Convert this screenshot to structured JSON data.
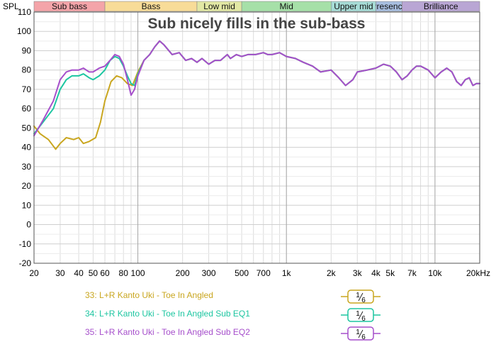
{
  "chart_data": {
    "type": "line",
    "title": "Sub nicely fills in the sub-bass",
    "ylabel": "SPL",
    "xscale": "log",
    "xlim": [
      20,
      20000
    ],
    "ylim": [
      -20,
      110
    ],
    "grid": true,
    "ytick_labels": [
      "110",
      "100",
      "90",
      "80",
      "70",
      "60",
      "50",
      "40",
      "30",
      "20",
      "10",
      "0",
      "-10",
      "-20"
    ],
    "xticks": [
      {
        "value": 20,
        "label": "20"
      },
      {
        "value": 30,
        "label": "30"
      },
      {
        "value": 40,
        "label": "40"
      },
      {
        "value": 50,
        "label": "50"
      },
      {
        "value": 60,
        "label": "60"
      },
      {
        "value": 80,
        "label": "80"
      },
      {
        "value": 100,
        "label": "100"
      },
      {
        "value": 200,
        "label": "200"
      },
      {
        "value": 300,
        "label": "300"
      },
      {
        "value": 500,
        "label": "500"
      },
      {
        "value": 700,
        "label": "700"
      },
      {
        "value": 1000,
        "label": "1k"
      },
      {
        "value": 2000,
        "label": "2k"
      },
      {
        "value": 3000,
        "label": "3k"
      },
      {
        "value": 4000,
        "label": "4k"
      },
      {
        "value": 5000,
        "label": "5k"
      },
      {
        "value": 7000,
        "label": "7k"
      },
      {
        "value": 10000,
        "label": "10k"
      },
      {
        "value": 20000,
        "label": "20kHz"
      }
    ],
    "bands": [
      {
        "label": "Sub bass",
        "from": 20,
        "to": 60,
        "color": "#f4a4a9"
      },
      {
        "label": "Bass",
        "from": 60,
        "to": 250,
        "color": "#f8dc98"
      },
      {
        "label": "Low mid",
        "from": 250,
        "to": 500,
        "color": "#e2e8a4"
      },
      {
        "label": "Mid",
        "from": 500,
        "to": 2000,
        "color": "#a6e0a8"
      },
      {
        "label": "Upper mid",
        "from": 2000,
        "to": 4000,
        "color": "#a6dcd6"
      },
      {
        "label": "Presence",
        "from": 4000,
        "to": 6000,
        "color": "#a8bfe0"
      },
      {
        "label": "Brilliance",
        "from": 6000,
        "to": 20000,
        "color": "#b9a6d4"
      }
    ],
    "series": [
      {
        "name": "33: L+R Kanto Uki - Toe In Angled",
        "color": "#c9a61f",
        "points": [
          [
            20,
            51
          ],
          [
            22,
            47
          ],
          [
            25,
            44
          ],
          [
            28,
            39
          ],
          [
            30,
            42
          ],
          [
            33,
            45
          ],
          [
            37,
            44
          ],
          [
            40,
            45
          ],
          [
            43,
            42
          ],
          [
            47,
            43
          ],
          [
            52,
            45
          ],
          [
            56,
            53
          ],
          [
            60,
            64
          ],
          [
            66,
            74
          ],
          [
            72,
            77
          ],
          [
            78,
            76
          ],
          [
            85,
            73
          ],
          [
            92,
            72
          ],
          [
            100,
            79
          ],
          [
            110,
            85
          ],
          [
            120,
            88
          ],
          [
            130,
            92
          ],
          [
            140,
            95
          ],
          [
            150,
            93
          ],
          [
            170,
            88
          ],
          [
            190,
            89
          ],
          [
            210,
            85
          ],
          [
            230,
            86
          ],
          [
            250,
            84
          ],
          [
            270,
            86
          ],
          [
            300,
            83
          ],
          [
            330,
            85
          ],
          [
            360,
            85
          ],
          [
            400,
            88
          ],
          [
            420,
            86
          ],
          [
            460,
            88
          ],
          [
            500,
            87
          ],
          [
            550,
            88
          ],
          [
            620,
            88
          ],
          [
            700,
            89
          ],
          [
            750,
            88
          ],
          [
            800,
            88
          ],
          [
            900,
            89
          ],
          [
            1000,
            87
          ],
          [
            1150,
            86
          ],
          [
            1300,
            84
          ],
          [
            1500,
            82
          ],
          [
            1700,
            79
          ],
          [
            2000,
            80
          ],
          [
            2250,
            76
          ],
          [
            2500,
            72
          ],
          [
            2800,
            75
          ],
          [
            3000,
            79
          ],
          [
            3500,
            80
          ],
          [
            4000,
            81
          ],
          [
            4500,
            83
          ],
          [
            5000,
            82
          ],
          [
            5500,
            79
          ],
          [
            6000,
            75
          ],
          [
            6500,
            77
          ],
          [
            7000,
            80
          ],
          [
            7500,
            82
          ],
          [
            8000,
            82
          ],
          [
            9000,
            80
          ],
          [
            10000,
            76
          ],
          [
            11000,
            79
          ],
          [
            12000,
            81
          ],
          [
            13000,
            79
          ],
          [
            14000,
            74
          ],
          [
            15000,
            72
          ],
          [
            16000,
            75
          ],
          [
            17000,
            76
          ],
          [
            18000,
            72
          ],
          [
            19000,
            73
          ],
          [
            20000,
            73
          ]
        ]
      },
      {
        "name": "34: L+R Kanto Uki - Toe In Angled Sub EQ1",
        "color": "#1dc6a1",
        "points": [
          [
            20,
            47
          ],
          [
            23,
            53
          ],
          [
            27,
            60
          ],
          [
            30,
            70
          ],
          [
            33,
            75
          ],
          [
            36,
            77
          ],
          [
            40,
            77
          ],
          [
            43,
            78
          ],
          [
            47,
            76
          ],
          [
            50,
            75
          ],
          [
            55,
            77
          ],
          [
            60,
            80
          ],
          [
            65,
            85
          ],
          [
            70,
            87
          ],
          [
            75,
            86
          ],
          [
            80,
            82
          ],
          [
            85,
            77
          ],
          [
            90,
            73
          ],
          [
            95,
            72
          ],
          [
            100,
            78
          ],
          [
            110,
            85
          ],
          [
            120,
            88
          ],
          [
            130,
            92
          ],
          [
            140,
            95
          ],
          [
            150,
            93
          ],
          [
            170,
            88
          ],
          [
            190,
            89
          ],
          [
            210,
            85
          ],
          [
            230,
            86
          ],
          [
            250,
            84
          ],
          [
            270,
            86
          ],
          [
            300,
            83
          ],
          [
            330,
            85
          ],
          [
            360,
            85
          ],
          [
            400,
            88
          ],
          [
            420,
            86
          ],
          [
            460,
            88
          ],
          [
            500,
            87
          ],
          [
            550,
            88
          ],
          [
            620,
            88
          ],
          [
            700,
            89
          ],
          [
            750,
            88
          ],
          [
            800,
            88
          ],
          [
            900,
            89
          ],
          [
            1000,
            87
          ],
          [
            1150,
            86
          ],
          [
            1300,
            84
          ],
          [
            1500,
            82
          ],
          [
            1700,
            79
          ],
          [
            2000,
            80
          ],
          [
            2250,
            76
          ],
          [
            2500,
            72
          ],
          [
            2800,
            75
          ],
          [
            3000,
            79
          ],
          [
            3500,
            80
          ],
          [
            4000,
            81
          ],
          [
            4500,
            83
          ],
          [
            5000,
            82
          ],
          [
            5500,
            79
          ],
          [
            6000,
            75
          ],
          [
            6500,
            77
          ],
          [
            7000,
            80
          ],
          [
            7500,
            82
          ],
          [
            8000,
            82
          ],
          [
            9000,
            80
          ],
          [
            10000,
            76
          ],
          [
            11000,
            79
          ],
          [
            12000,
            81
          ],
          [
            13000,
            79
          ],
          [
            14000,
            74
          ],
          [
            15000,
            72
          ],
          [
            16000,
            75
          ],
          [
            17000,
            76
          ],
          [
            18000,
            72
          ],
          [
            19000,
            73
          ],
          [
            20000,
            73
          ]
        ]
      },
      {
        "name": "35: L+R Kanto Uki - Toe In Angled Sub EQ2",
        "color": "#a64fcb",
        "points": [
          [
            20,
            46
          ],
          [
            23,
            54
          ],
          [
            27,
            64
          ],
          [
            30,
            75
          ],
          [
            33,
            79
          ],
          [
            36,
            80
          ],
          [
            40,
            80
          ],
          [
            43,
            81
          ],
          [
            47,
            79
          ],
          [
            50,
            79
          ],
          [
            55,
            81
          ],
          [
            60,
            82
          ],
          [
            65,
            85
          ],
          [
            70,
            88
          ],
          [
            75,
            87
          ],
          [
            80,
            83
          ],
          [
            85,
            75
          ],
          [
            90,
            67
          ],
          [
            95,
            70
          ],
          [
            100,
            77
          ],
          [
            110,
            85
          ],
          [
            120,
            88
          ],
          [
            130,
            92
          ],
          [
            140,
            95
          ],
          [
            150,
            93
          ],
          [
            170,
            88
          ],
          [
            190,
            89
          ],
          [
            210,
            85
          ],
          [
            230,
            86
          ],
          [
            250,
            84
          ],
          [
            270,
            86
          ],
          [
            300,
            83
          ],
          [
            330,
            85
          ],
          [
            360,
            85
          ],
          [
            400,
            88
          ],
          [
            420,
            86
          ],
          [
            460,
            88
          ],
          [
            500,
            87
          ],
          [
            550,
            88
          ],
          [
            620,
            88
          ],
          [
            700,
            89
          ],
          [
            750,
            88
          ],
          [
            800,
            88
          ],
          [
            900,
            89
          ],
          [
            1000,
            87
          ],
          [
            1150,
            86
          ],
          [
            1300,
            84
          ],
          [
            1500,
            82
          ],
          [
            1700,
            79
          ],
          [
            2000,
            80
          ],
          [
            2250,
            76
          ],
          [
            2500,
            72
          ],
          [
            2800,
            75
          ],
          [
            3000,
            79
          ],
          [
            3500,
            80
          ],
          [
            4000,
            81
          ],
          [
            4500,
            83
          ],
          [
            5000,
            82
          ],
          [
            5500,
            79
          ],
          [
            6000,
            75
          ],
          [
            6500,
            77
          ],
          [
            7000,
            80
          ],
          [
            7500,
            82
          ],
          [
            8000,
            82
          ],
          [
            9000,
            80
          ],
          [
            10000,
            76
          ],
          [
            11000,
            79
          ],
          [
            12000,
            81
          ],
          [
            13000,
            79
          ],
          [
            14000,
            74
          ],
          [
            15000,
            72
          ],
          [
            16000,
            75
          ],
          [
            17000,
            76
          ],
          [
            18000,
            72
          ],
          [
            19000,
            73
          ],
          [
            20000,
            73
          ]
        ]
      }
    ]
  },
  "legend": {
    "smoothing_numerator": "1",
    "smoothing_denominator": "6",
    "items": [
      {
        "label": "33: L+R Kanto Uki - Toe In Angled",
        "color": "#c9a61f"
      },
      {
        "label": "34: L+R Kanto Uki - Toe In Angled Sub EQ1",
        "color": "#1dc6a1"
      },
      {
        "label": "35: L+R Kanto Uki - Toe In Angled Sub EQ2",
        "color": "#a64fcb"
      }
    ]
  }
}
